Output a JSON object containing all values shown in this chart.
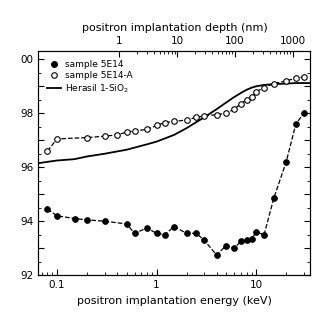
{
  "xlabel": "positron implantation energy (keV)",
  "top_xlabel": "positron implantation depth (nm)",
  "xlim": [
    0.065,
    35
  ],
  "ylim": [
    92,
    100.3
  ],
  "yticks": [
    92,
    93,
    94,
    95,
    96,
    97,
    98,
    99,
    100
  ],
  "ytick_labels": [
    "92",
    "",
    "94",
    "",
    "96",
    "",
    "98",
    "",
    "00"
  ],
  "background_color": "#ffffff",
  "sample5E14_x": [
    0.08,
    0.1,
    0.15,
    0.2,
    0.3,
    0.5,
    0.6,
    0.8,
    1.0,
    1.2,
    1.5,
    2.0,
    2.5,
    3.0,
    4.0,
    5.0,
    6.0,
    7.0,
    8.0,
    9.0,
    10.0,
    12.0,
    15.0,
    20.0,
    25.0,
    30.0
  ],
  "sample5E14_y": [
    94.45,
    94.2,
    94.1,
    94.05,
    94.0,
    93.9,
    93.55,
    93.75,
    93.55,
    93.5,
    93.8,
    93.55,
    93.55,
    93.3,
    92.75,
    93.1,
    93.0,
    93.25,
    93.3,
    93.35,
    93.6,
    93.5,
    94.85,
    96.2,
    97.6,
    98.0
  ],
  "sample5E14A_x": [
    0.08,
    0.1,
    0.2,
    0.3,
    0.4,
    0.5,
    0.6,
    0.8,
    1.0,
    1.2,
    1.5,
    2.0,
    2.5,
    3.0,
    4.0,
    5.0,
    6.0,
    7.0,
    8.0,
    9.0,
    10.0,
    12.0,
    15.0,
    20.0,
    25.0,
    30.0
  ],
  "sample5E14A_y": [
    96.6,
    97.05,
    97.1,
    97.15,
    97.2,
    97.3,
    97.35,
    97.4,
    97.55,
    97.65,
    97.7,
    97.75,
    97.85,
    97.9,
    97.95,
    98.0,
    98.15,
    98.35,
    98.5,
    98.6,
    98.8,
    98.95,
    99.1,
    99.2,
    99.3,
    99.35
  ],
  "herasil_x": [
    0.065,
    0.08,
    0.1,
    0.15,
    0.2,
    0.3,
    0.5,
    0.8,
    1.0,
    1.5,
    2.0,
    3.0,
    4.0,
    5.0,
    6.0,
    7.0,
    8.0,
    9.0,
    10.0,
    12.0,
    15.0,
    20.0,
    25.0,
    30.0,
    35.0
  ],
  "herasil_y": [
    96.15,
    96.2,
    96.25,
    96.3,
    96.4,
    96.5,
    96.65,
    96.85,
    96.95,
    97.2,
    97.45,
    97.85,
    98.15,
    98.4,
    98.6,
    98.75,
    98.87,
    98.95,
    99.0,
    99.05,
    99.08,
    99.1,
    99.12,
    99.12,
    99.12
  ],
  "depth_ticks": [
    1,
    10,
    100,
    1000
  ],
  "depth_tick_labels": [
    "1",
    "10",
    "100",
    "1000"
  ],
  "depth_xlim": [
    0.04,
    2000
  ]
}
